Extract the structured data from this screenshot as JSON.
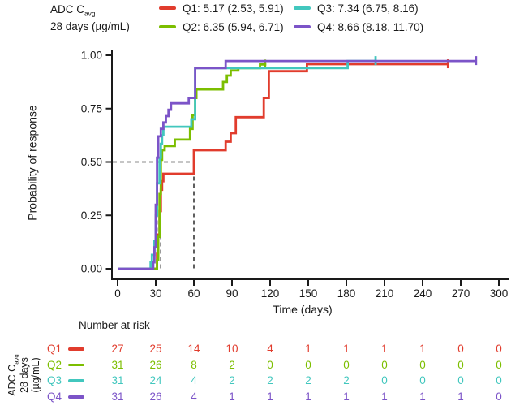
{
  "figure": {
    "background": "#ffffff",
    "text_color": "#1a1a1a"
  },
  "legend": {
    "title": {
      "line1_prefix": "ADC C",
      "line1_sub": "avg",
      "line2": "28 days (µg/mL)"
    },
    "items": [
      {
        "id": "Q1",
        "label": "Q1: 5.17 (2.53, 5.91)",
        "color": "#E13C2D"
      },
      {
        "id": "Q2",
        "label": "Q2: 6.35 (5.94, 6.71)",
        "color": "#7CBE00"
      },
      {
        "id": "Q3",
        "label": "Q3: 7.34 (6.75, 8.16)",
        "color": "#42C7BE"
      },
      {
        "id": "Q4",
        "label": "Q4: 8.66 (8.18, 11.70)",
        "color": "#7C54C8"
      }
    ],
    "columns": [
      [
        "Q1",
        "Q2"
      ],
      [
        "Q3",
        "Q4"
      ]
    ]
  },
  "chart_data": {
    "type": "line",
    "subtype": "kaplan-meier-cumulative-response-step-curves",
    "title": "",
    "xlabel": "Time (days)",
    "ylabel": "Probability of response",
    "xlim": [
      0,
      300
    ],
    "ylim": [
      0,
      1
    ],
    "xticks": [
      0,
      30,
      60,
      90,
      120,
      150,
      180,
      210,
      240,
      270,
      300
    ],
    "ytick_labels": [
      "0.00",
      "0.25",
      "0.50",
      "0.75",
      "1.00"
    ],
    "grid": false,
    "legend_position": "top",
    "median_guides": {
      "probability": 0.5,
      "vertical_days": [
        31,
        34,
        60
      ]
    },
    "series": [
      {
        "name": "Q1",
        "color": "#E13C2D",
        "median_days": 60,
        "steps": [
          [
            0,
            0
          ],
          [
            31,
            0.07
          ],
          [
            32,
            0.16
          ],
          [
            33,
            0.27
          ],
          [
            34,
            0.37
          ],
          [
            35,
            0.41
          ],
          [
            36,
            0.445
          ],
          [
            60,
            0.555
          ],
          [
            85,
            0.595
          ],
          [
            89,
            0.635
          ],
          [
            93,
            0.71
          ],
          [
            115,
            0.8
          ],
          [
            119,
            0.925
          ],
          [
            149,
            0.958
          ]
        ],
        "end_day": 260,
        "censor": [
          [
            260,
            0.958
          ]
        ]
      },
      {
        "name": "Q2",
        "color": "#7CBE00",
        "median_days": 34,
        "steps": [
          [
            0,
            0
          ],
          [
            31,
            0.04
          ],
          [
            32,
            0.15
          ],
          [
            33,
            0.35
          ],
          [
            34,
            0.51
          ],
          [
            35,
            0.555
          ],
          [
            37,
            0.575
          ],
          [
            45,
            0.605
          ],
          [
            57,
            0.655
          ],
          [
            59,
            0.72
          ],
          [
            61,
            0.8
          ],
          [
            62,
            0.84
          ],
          [
            83,
            0.875
          ],
          [
            86,
            0.905
          ],
          [
            89,
            0.928
          ],
          [
            95,
            0.94
          ],
          [
            112,
            0.957
          ]
        ],
        "end_day": 117,
        "censor": [
          [
            116,
            0.957
          ]
        ]
      },
      {
        "name": "Q3",
        "color": "#42C7BE",
        "median_days": 33,
        "steps": [
          [
            0,
            0
          ],
          [
            26,
            0.03
          ],
          [
            27,
            0.065
          ],
          [
            29,
            0.13
          ],
          [
            30,
            0.25
          ],
          [
            31,
            0.4
          ],
          [
            33,
            0.52
          ],
          [
            34,
            0.585
          ],
          [
            35,
            0.625
          ],
          [
            36,
            0.665
          ],
          [
            58,
            0.7
          ],
          [
            61,
            0.94
          ],
          [
            181,
            0.973
          ]
        ],
        "end_day": 203,
        "censor": [
          [
            203,
            0.973
          ]
        ]
      },
      {
        "name": "Q4",
        "color": "#7C54C8",
        "median_days": 31,
        "steps": [
          [
            0,
            0
          ],
          [
            28,
            0.03
          ],
          [
            29,
            0.1
          ],
          [
            30,
            0.3
          ],
          [
            31,
            0.52
          ],
          [
            32,
            0.62
          ],
          [
            34,
            0.655
          ],
          [
            36,
            0.685
          ],
          [
            38,
            0.715
          ],
          [
            40,
            0.745
          ],
          [
            42,
            0.775
          ],
          [
            56,
            0.8
          ],
          [
            61,
            0.94
          ],
          [
            85,
            0.973
          ]
        ],
        "end_day": 282,
        "censor": [
          [
            282,
            0.973
          ]
        ]
      }
    ]
  },
  "risk_table": {
    "header": "Number at risk",
    "axis_label": {
      "line1_prefix": "ADC C",
      "line1_sub": "avg",
      "line2": "28 days",
      "line3": "(µg/mL)"
    },
    "time_points": [
      0,
      30,
      60,
      90,
      120,
      150,
      180,
      210,
      240,
      270,
      300
    ],
    "rows": [
      {
        "name": "Q1",
        "color": "#E13C2D",
        "values": [
          27,
          25,
          14,
          10,
          4,
          1,
          1,
          1,
          1,
          0,
          0
        ]
      },
      {
        "name": "Q2",
        "color": "#7CBE00",
        "values": [
          31,
          26,
          8,
          2,
          0,
          0,
          0,
          0,
          0,
          0,
          0
        ]
      },
      {
        "name": "Q3",
        "color": "#42C7BE",
        "values": [
          31,
          24,
          4,
          2,
          2,
          2,
          2,
          0,
          0,
          0,
          0
        ]
      },
      {
        "name": "Q4",
        "color": "#7C54C8",
        "values": [
          31,
          26,
          4,
          1,
          1,
          1,
          1,
          1,
          1,
          1,
          0
        ]
      }
    ]
  }
}
